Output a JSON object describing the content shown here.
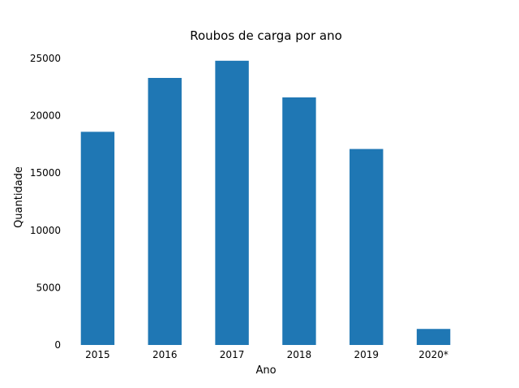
{
  "chart_data": {
    "type": "bar",
    "title": "Roubos de carga por ano",
    "xlabel": "Ano",
    "ylabel": "Quantidade",
    "categories": [
      "2015",
      "2016",
      "2017",
      "2018",
      "2019",
      "2020*"
    ],
    "values": [
      18600,
      23300,
      24800,
      21600,
      17100,
      1400
    ],
    "ylim": [
      0,
      25000
    ],
    "yticks": [
      0,
      5000,
      10000,
      15000,
      20000,
      25000
    ],
    "grid": false,
    "legend": "none",
    "bar_color": "#1f77b4"
  }
}
